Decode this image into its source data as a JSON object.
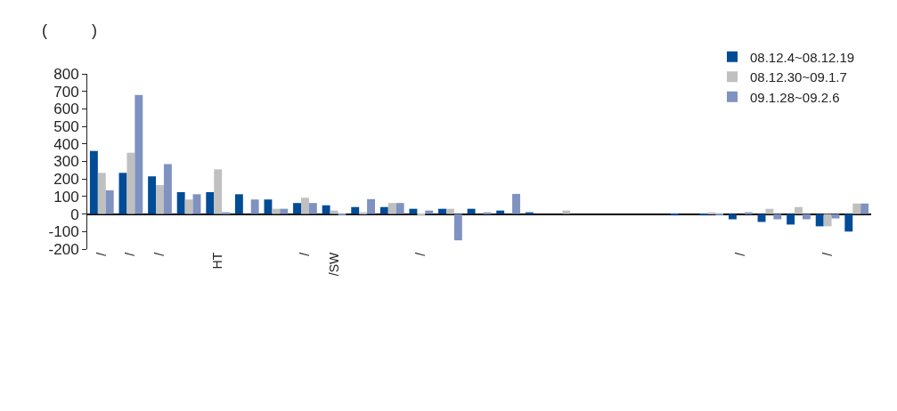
{
  "chart_data": {
    "type": "bar",
    "ylabel": "(          )",
    "categories": [
      "/",
      "/",
      "/",
      null,
      "HT",
      null,
      null,
      "/",
      "/SW",
      null,
      null,
      "/",
      null,
      null,
      null,
      null,
      null,
      null,
      null,
      null,
      null,
      null,
      "/",
      null,
      null,
      "/",
      null
    ],
    "series": [
      {
        "name": "08.12.4~08.12.19",
        "color": "#004c97",
        "values": [
          360,
          235,
          215,
          125,
          125,
          113,
          83,
          63,
          50,
          40,
          40,
          30,
          30,
          30,
          20,
          10,
          0,
          0,
          0,
          0,
          -8,
          -8,
          -30,
          -45,
          -60,
          -70,
          -100
        ]
      },
      {
        "name": "08.12.30~09.1.7",
        "color": "#c0c0c0",
        "values": [
          235,
          350,
          165,
          83,
          255,
          0,
          30,
          93,
          20,
          10,
          63,
          -10,
          30,
          0,
          0,
          0,
          20,
          0,
          0,
          0,
          0,
          10,
          0,
          30,
          40,
          -70,
          60
        ]
      },
      {
        "name": "09.1.28~09.2.6",
        "color": "#7f92c0",
        "values": [
          135,
          680,
          285,
          113,
          10,
          83,
          30,
          63,
          -8,
          85,
          63,
          20,
          -150,
          10,
          115,
          0,
          0,
          0,
          0,
          0,
          0,
          -8,
          10,
          -30,
          -30,
          -25,
          60
        ]
      }
    ],
    "ylim": [
      -200,
      800
    ],
    "yticks": [
      -200,
      -100,
      0,
      100,
      200,
      300,
      400,
      500,
      600,
      700,
      800
    ],
    "legend": "top right"
  }
}
